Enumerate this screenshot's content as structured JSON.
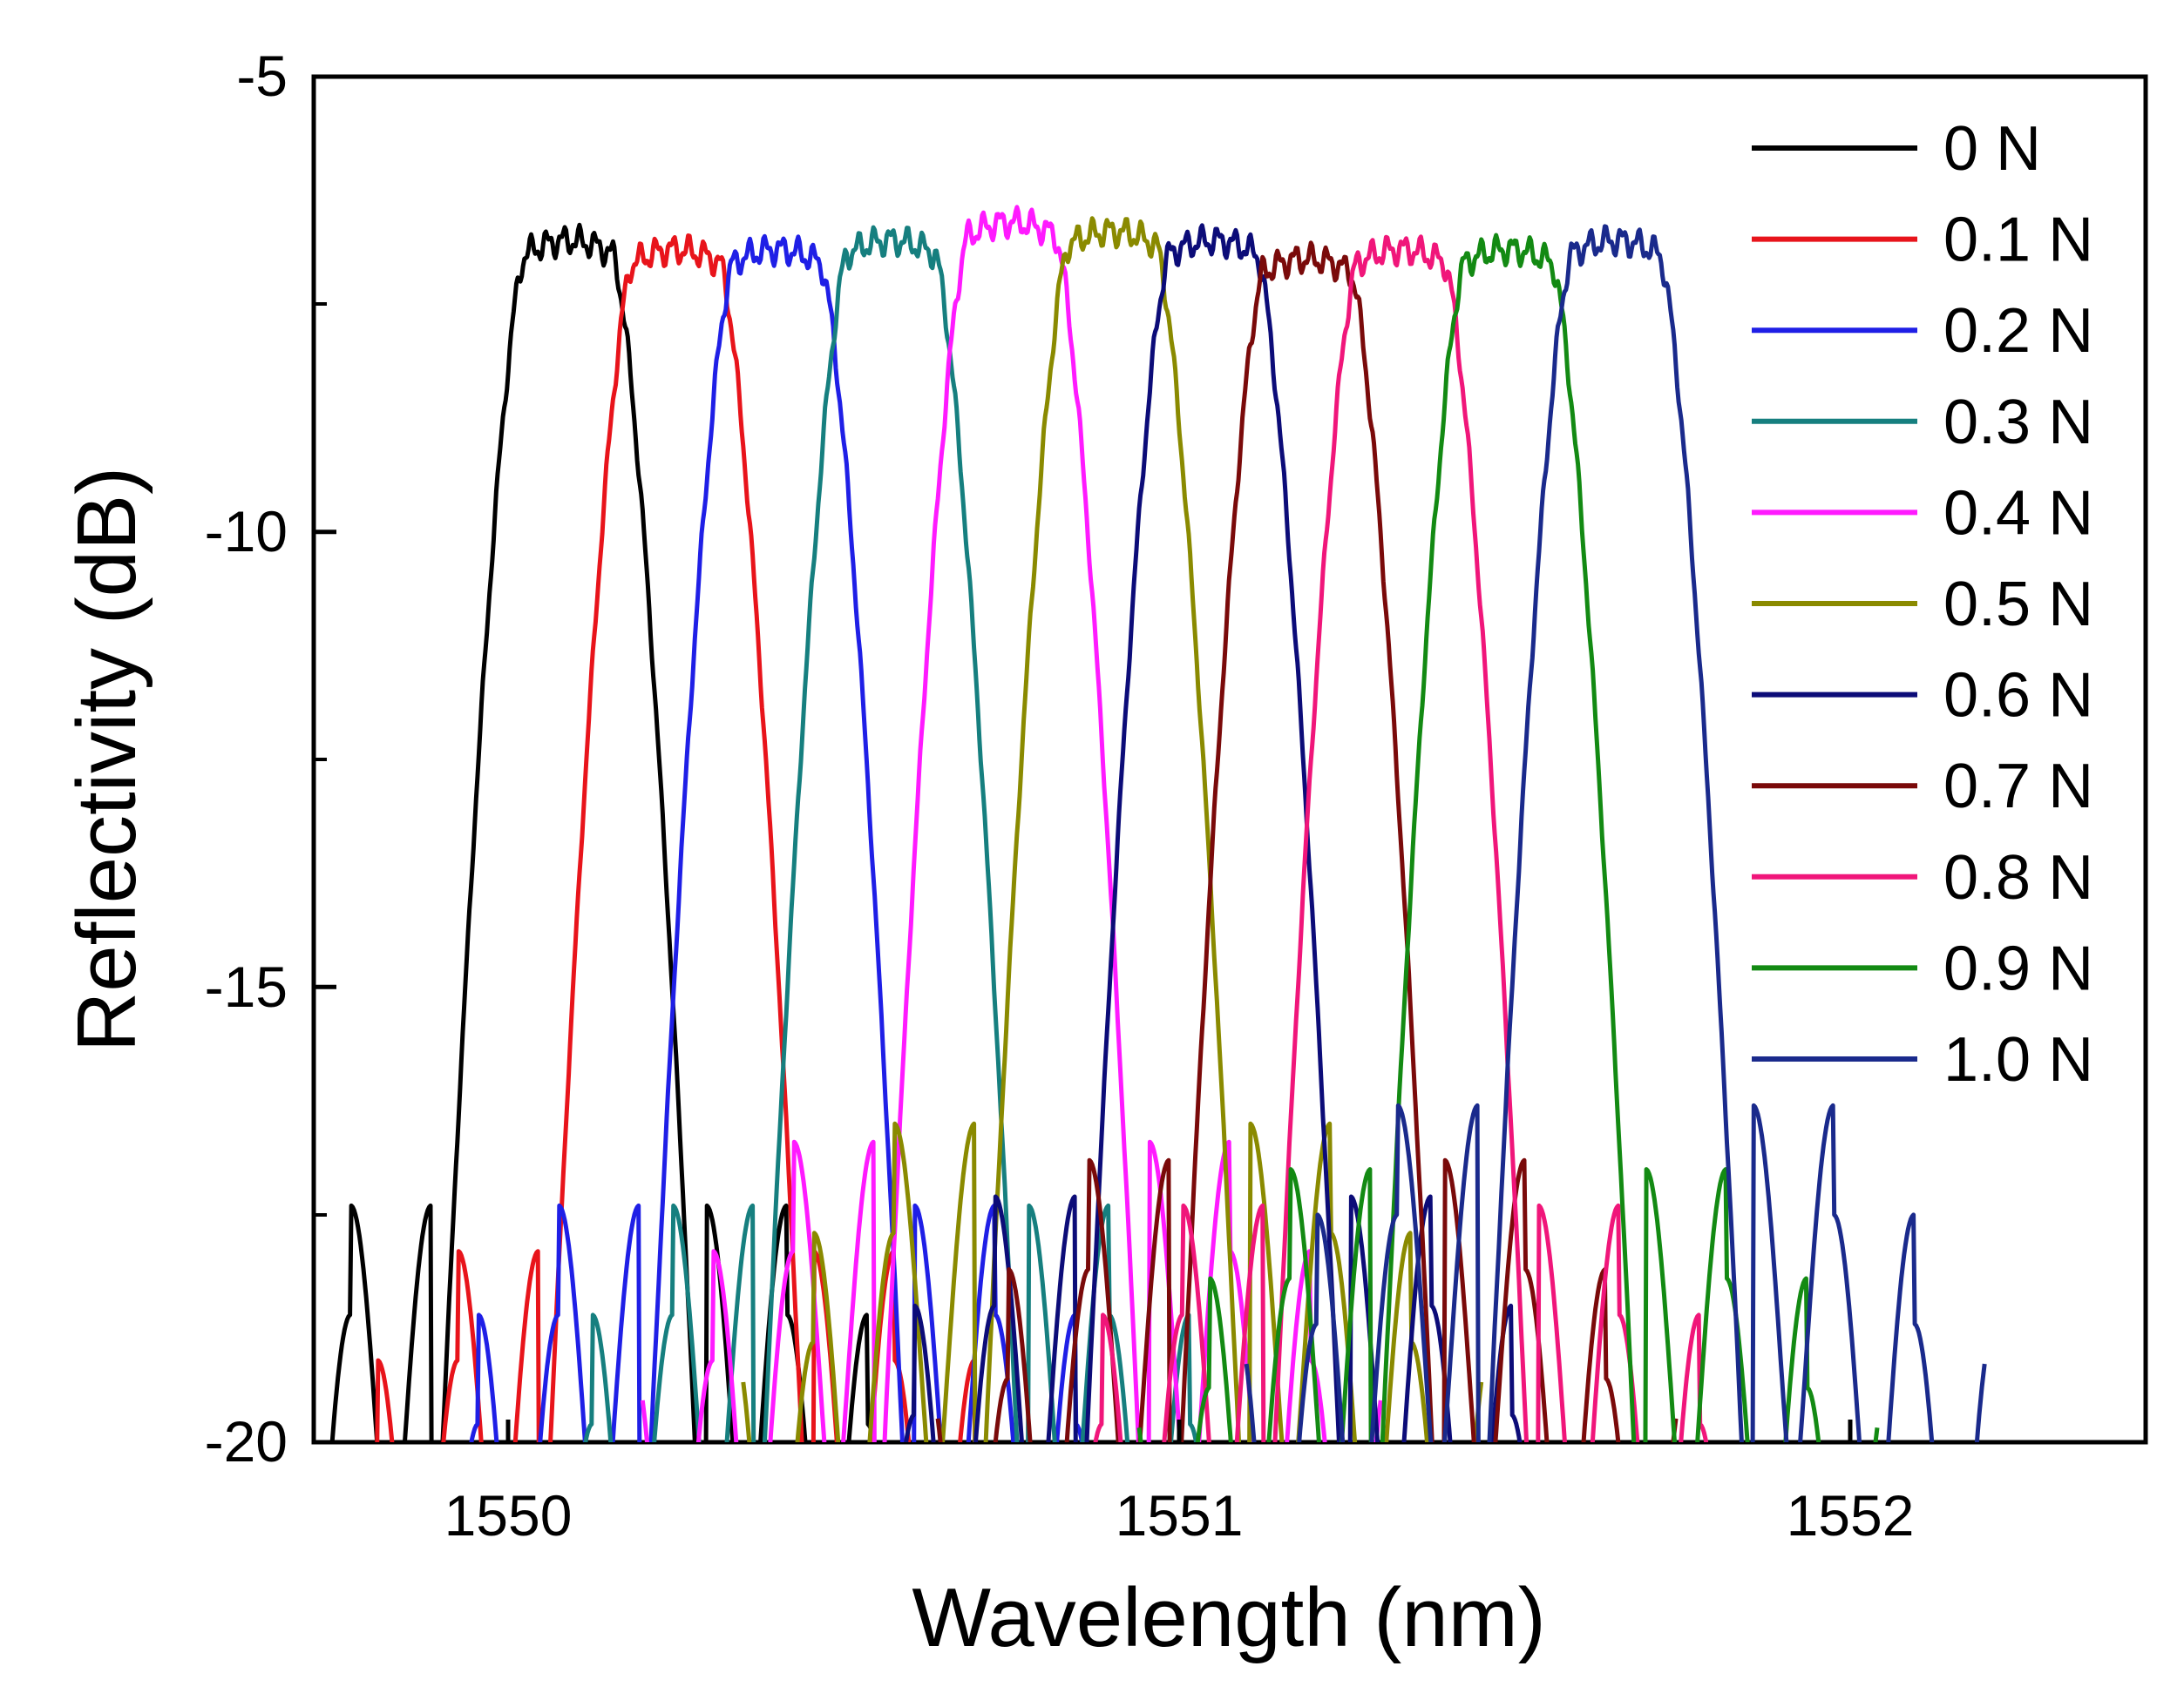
{
  "chart_data": {
    "type": "line",
    "title": "",
    "xlabel": "Wavelength (nm)",
    "ylabel": "Reflectivity (dB)",
    "xlim": [
      1549.72,
      1552.45
    ],
    "ylim": [
      -20,
      -5
    ],
    "xticks": [
      1550,
      1551,
      1552
    ],
    "xtick_labels": [
      "1550",
      "1551",
      "1552"
    ],
    "yticks": [
      -5,
      -10,
      -15,
      -20
    ],
    "ytick_labels": [
      "-5",
      "-10",
      "-15",
      "-20"
    ],
    "grid": false,
    "legend_position": "top-right",
    "series": [
      {
        "name": "0 N",
        "color": "#000000",
        "peak_center": 1550.1,
        "peak_level": -6.8,
        "top_width": 0.13,
        "edge_width": 0.14,
        "sidelobe_level": -17.4
      },
      {
        "name": "0.1 N",
        "color": "#e8141b",
        "peak_center": 1550.26,
        "peak_level": -6.9,
        "top_width": 0.13,
        "edge_width": 0.14,
        "sidelobe_level": -17.3
      },
      {
        "name": "0.2 N",
        "color": "#1f1fe6",
        "peak_center": 1550.41,
        "peak_level": -6.9,
        "top_width": 0.13,
        "edge_width": 0.14,
        "sidelobe_level": -17.2
      },
      {
        "name": "0.3 N",
        "color": "#167f7f",
        "peak_center": 1550.58,
        "peak_level": -6.8,
        "top_width": 0.13,
        "edge_width": 0.14,
        "sidelobe_level": -16.6
      },
      {
        "name": "0.4 N",
        "color": "#ff1aff",
        "peak_center": 1550.76,
        "peak_level": -6.6,
        "top_width": 0.13,
        "edge_width": 0.14,
        "sidelobe_level": -16.3
      },
      {
        "name": "0.5 N",
        "color": "#8a8a00",
        "peak_center": 1550.91,
        "peak_level": -6.7,
        "top_width": 0.13,
        "edge_width": 0.14,
        "sidelobe_level": -16.5
      },
      {
        "name": "0.6 N",
        "color": "#0c0c78",
        "peak_center": 1551.06,
        "peak_level": -6.8,
        "top_width": 0.13,
        "edge_width": 0.14,
        "sidelobe_level": -16.7
      },
      {
        "name": "0.7 N",
        "color": "#7a0a0a",
        "peak_center": 1551.2,
        "peak_level": -7.0,
        "top_width": 0.13,
        "edge_width": 0.14,
        "sidelobe_level": -16.7
      },
      {
        "name": "0.8 N",
        "color": "#f0167a",
        "peak_center": 1551.34,
        "peak_level": -6.9,
        "top_width": 0.13,
        "edge_width": 0.14,
        "sidelobe_level": -16.6
      },
      {
        "name": "0.9 N",
        "color": "#138a13",
        "peak_center": 1551.5,
        "peak_level": -6.9,
        "top_width": 0.13,
        "edge_width": 0.14,
        "sidelobe_level": -16.6
      },
      {
        "name": "1.0 N",
        "color": "#1a2a8c",
        "peak_center": 1551.66,
        "peak_level": -6.8,
        "top_width": 0.13,
        "edge_width": 0.14,
        "sidelobe_level": -16.3
      }
    ]
  }
}
